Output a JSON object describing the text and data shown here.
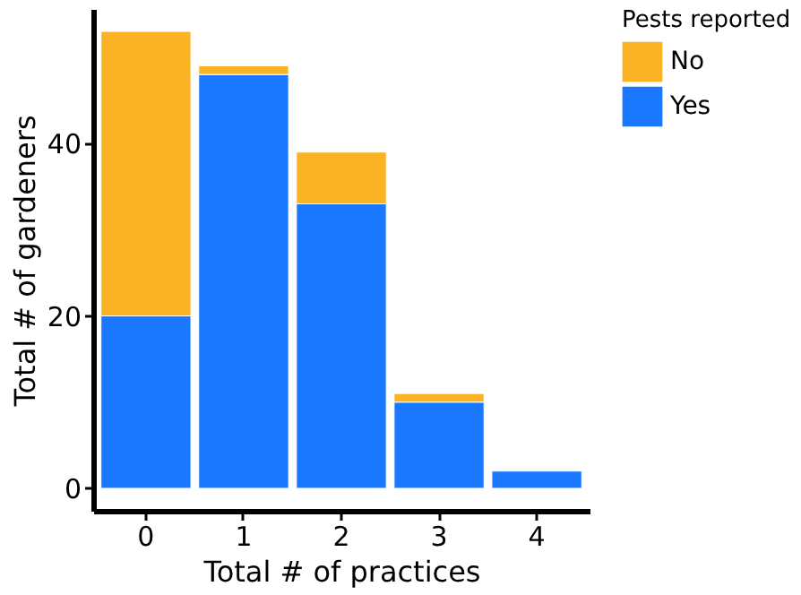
{
  "chart_data": {
    "type": "bar",
    "stacked": true,
    "xlabel": "Total # of practices",
    "ylabel": "Total # of gardeners",
    "legend_title": "Pests reported",
    "legend": "right",
    "categories": [
      "0",
      "1",
      "2",
      "3",
      "4"
    ],
    "series": [
      {
        "name": "Yes",
        "color": "#1a78ff",
        "values": [
          20,
          48,
          33,
          10,
          2
        ]
      },
      {
        "name": "No",
        "color": "#fbb224",
        "values": [
          33,
          1,
          6,
          1,
          0
        ]
      }
    ],
    "ylim": [
      -2.6,
      55.6
    ],
    "yticks": [
      0,
      20,
      40
    ],
    "grid": false
  }
}
